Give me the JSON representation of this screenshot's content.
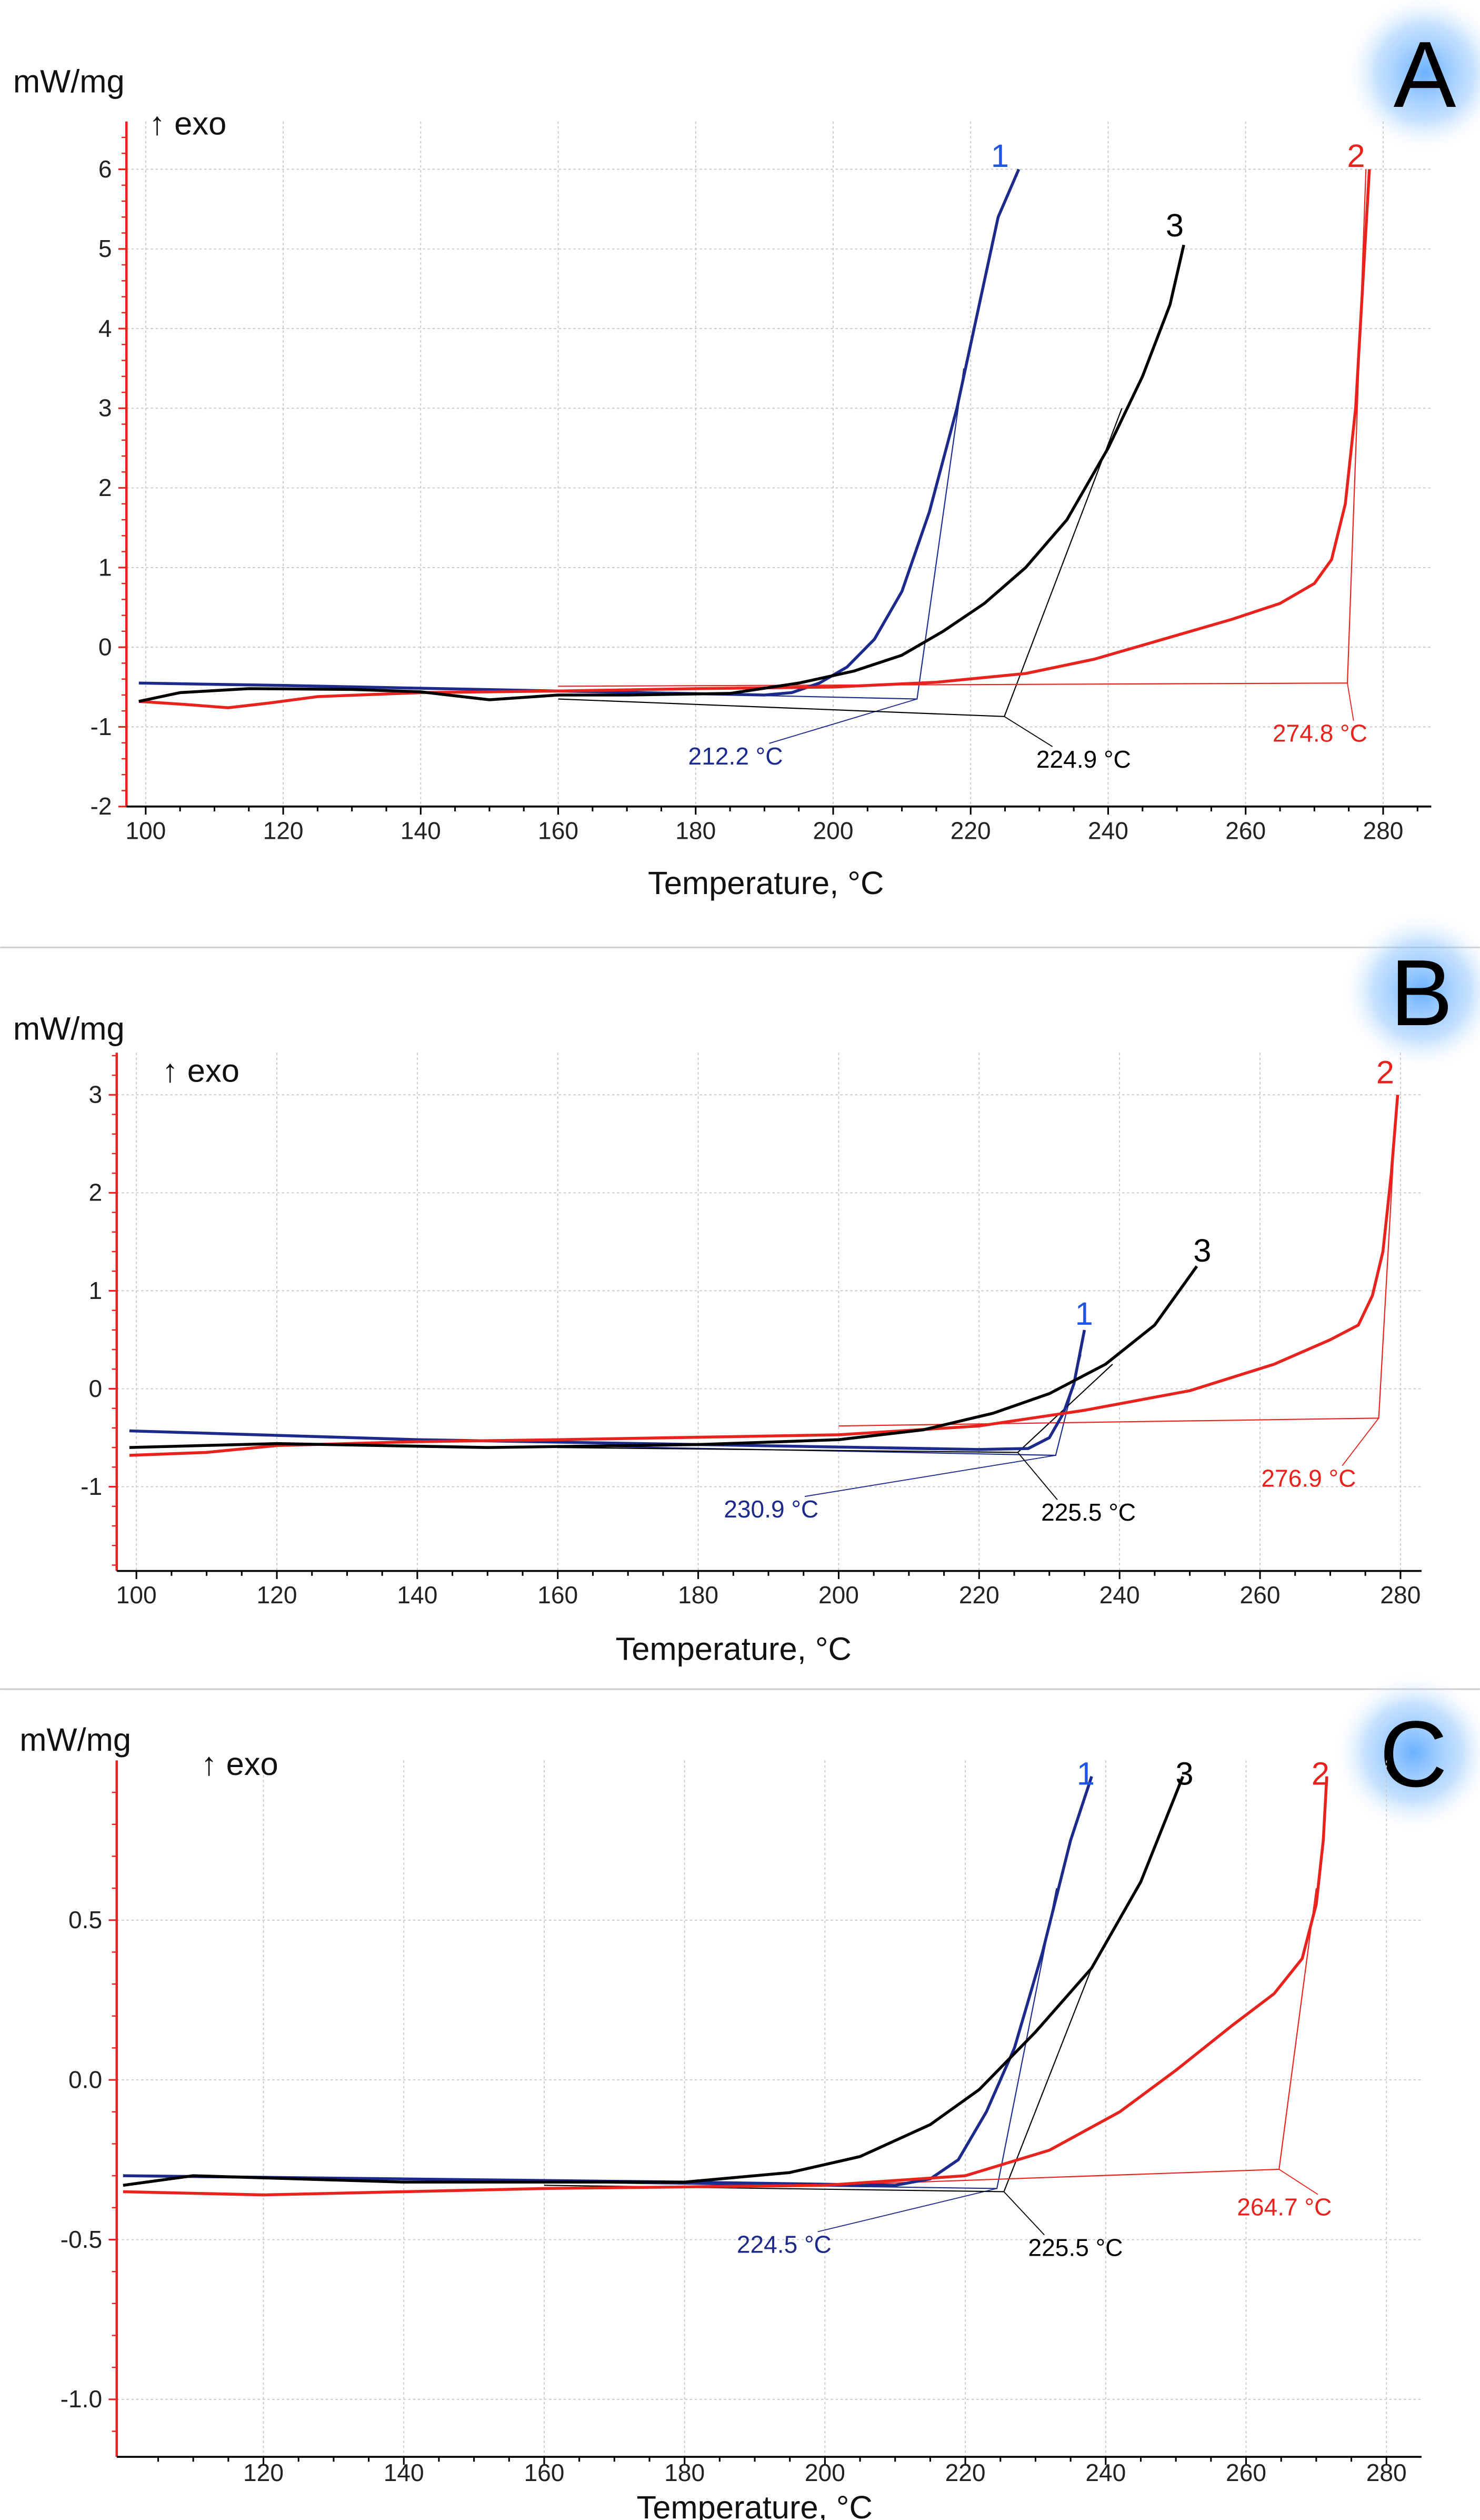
{
  "colors": {
    "series1": "#1c2a8c",
    "series1_label": "#1f55e0",
    "series2": "#e8231e",
    "series3": "#000000",
    "axis": "#e8231e"
  },
  "chart_data": [
    {
      "panel": "A",
      "type": "line",
      "ylabel": "mW/mg",
      "exo_label": "↑ exo",
      "xlabel": "Temperature, °C",
      "xlim": [
        97.2,
        287
      ],
      "ylim": [
        -2,
        6.6
      ],
      "xticks": [
        100,
        120,
        140,
        160,
        180,
        200,
        220,
        240,
        260,
        280
      ],
      "yticks": [
        -2,
        -1,
        0,
        1,
        2,
        3,
        4,
        5,
        6
      ],
      "ytick_labels": [
        "-2",
        "-1",
        "0",
        "1",
        "2",
        "3",
        "4",
        "5",
        "6"
      ],
      "grid": true,
      "series": [
        {
          "name": "1",
          "color": "#1c2a8c",
          "points": [
            [
              99,
              -0.45
            ],
            [
              120,
              -0.48
            ],
            [
              160,
              -0.55
            ],
            [
              190,
              -0.6
            ],
            [
              194,
              -0.57
            ],
            [
              198,
              -0.45
            ],
            [
              202,
              -0.25
            ],
            [
              206,
              0.1
            ],
            [
              210,
              0.7
            ],
            [
              214,
              1.7
            ],
            [
              218,
              3.0
            ],
            [
              221,
              4.2
            ],
            [
              224,
              5.4
            ],
            [
              227,
              6.0
            ]
          ]
        },
        {
          "name": "2",
          "color": "#e8231e",
          "points": [
            [
              99,
              -0.68
            ],
            [
              106,
              -0.72
            ],
            [
              112,
              -0.76
            ],
            [
              118,
              -0.7
            ],
            [
              125,
              -0.62
            ],
            [
              140,
              -0.57
            ],
            [
              160,
              -0.55
            ],
            [
              180,
              -0.52
            ],
            [
              200,
              -0.5
            ],
            [
              215,
              -0.44
            ],
            [
              228,
              -0.33
            ],
            [
              238,
              -0.15
            ],
            [
              248,
              0.1
            ],
            [
              258,
              0.35
            ],
            [
              265,
              0.55
            ],
            [
              270,
              0.8
            ],
            [
              272.5,
              1.1
            ],
            [
              274.5,
              1.8
            ],
            [
              276,
              3.0
            ],
            [
              277,
              4.5
            ],
            [
              278,
              6.0
            ]
          ]
        },
        {
          "name": "3",
          "color": "#000000",
          "points": [
            [
              99,
              -0.68
            ],
            [
              105,
              -0.57
            ],
            [
              115,
              -0.52
            ],
            [
              130,
              -0.53
            ],
            [
              140,
              -0.56
            ],
            [
              150,
              -0.66
            ],
            [
              160,
              -0.6
            ],
            [
              170,
              -0.6
            ],
            [
              185,
              -0.58
            ],
            [
              195,
              -0.45
            ],
            [
              203,
              -0.3
            ],
            [
              210,
              -0.1
            ],
            [
              216,
              0.2
            ],
            [
              222,
              0.55
            ],
            [
              228,
              1.0
            ],
            [
              234,
              1.6
            ],
            [
              240,
              2.5
            ],
            [
              245,
              3.4
            ],
            [
              249,
              4.3
            ],
            [
              251,
              5.05
            ]
          ]
        }
      ],
      "onsets": [
        {
          "series": "1",
          "value": 212.2,
          "label": "212.2 °C",
          "y": -0.65,
          "base_from": [
            160,
            -0.55
          ],
          "tangent_to": [
            219,
            3.5
          ]
        },
        {
          "series": "3",
          "value": 224.9,
          "label": "224.9 °C",
          "y": -0.87,
          "base_from": [
            160,
            -0.65
          ],
          "tangent_to": [
            242,
            3.0
          ]
        },
        {
          "series": "2",
          "value": 274.8,
          "label": "274.8 °C",
          "y": -0.45,
          "base_from": [
            160,
            -0.49
          ],
          "tangent_to": [
            277.5,
            6.0
          ]
        }
      ]
    },
    {
      "panel": "B",
      "type": "line",
      "ylabel": "mW/mg",
      "exo_label": "↑ exo",
      "xlabel": "Temperature, °C",
      "xlim": [
        97.2,
        283
      ],
      "ylim": [
        -1.86,
        3.43
      ],
      "xticks": [
        100,
        120,
        140,
        160,
        180,
        200,
        220,
        240,
        260,
        280
      ],
      "yticks": [
        -1,
        0,
        1,
        2,
        3
      ],
      "ytick_labels": [
        "-1",
        "0",
        "1",
        "2",
        "3"
      ],
      "grid": true,
      "series": [
        {
          "name": "1",
          "color": "#1c2a8c",
          "points": [
            [
              99,
              -0.43
            ],
            [
              140,
              -0.52
            ],
            [
              180,
              -0.57
            ],
            [
              220,
              -0.62
            ],
            [
              227,
              -0.61
            ],
            [
              230,
              -0.5
            ],
            [
              232,
              -0.25
            ],
            [
              233.5,
              0.05
            ],
            [
              235,
              0.6
            ]
          ]
        },
        {
          "name": "2",
          "color": "#e8231e",
          "points": [
            [
              99,
              -0.68
            ],
            [
              110,
              -0.65
            ],
            [
              120,
              -0.58
            ],
            [
              140,
              -0.54
            ],
            [
              160,
              -0.52
            ],
            [
              200,
              -0.47
            ],
            [
              220,
              -0.38
            ],
            [
              235,
              -0.22
            ],
            [
              250,
              -0.02
            ],
            [
              262,
              0.25
            ],
            [
              270,
              0.5
            ],
            [
              274,
              0.65
            ],
            [
              276,
              0.95
            ],
            [
              277.5,
              1.4
            ],
            [
              278.7,
              2.2
            ],
            [
              279.6,
              3.0
            ]
          ]
        },
        {
          "name": "3",
          "color": "#000000",
          "points": [
            [
              99,
              -0.6
            ],
            [
              120,
              -0.56
            ],
            [
              150,
              -0.6
            ],
            [
              180,
              -0.57
            ],
            [
              200,
              -0.52
            ],
            [
              212,
              -0.42
            ],
            [
              222,
              -0.25
            ],
            [
              230,
              -0.05
            ],
            [
              238,
              0.25
            ],
            [
              245,
              0.65
            ],
            [
              251,
              1.25
            ]
          ]
        }
      ],
      "onsets": [
        {
          "series": "1",
          "value": 230.9,
          "label": "230.9 °C",
          "y": -0.68,
          "base_from": [
            160,
            -0.58
          ],
          "tangent_to": [
            234.5,
            0.35
          ]
        },
        {
          "series": "3",
          "value": 225.5,
          "label": "225.5 °C",
          "y": -0.65,
          "base_from": [
            160,
            -0.6
          ],
          "tangent_to": [
            239,
            0.25
          ]
        },
        {
          "series": "2",
          "value": 276.9,
          "label": "276.9 °C",
          "y": -0.3,
          "base_from": [
            200,
            -0.38
          ],
          "tangent_to": [
            279.5,
            3.0
          ]
        }
      ]
    },
    {
      "panel": "C",
      "type": "line",
      "ylabel": "mW/mg",
      "exo_label": "↑ exo",
      "xlabel": "Temperature, °C",
      "xlim": [
        99.1,
        285
      ],
      "ylim": [
        -1.18,
        1.0
      ],
      "xticks": [
        120,
        140,
        160,
        180,
        200,
        220,
        240,
        260,
        280
      ],
      "yticks": [
        -1.0,
        -0.5,
        0.0,
        0.5
      ],
      "ytick_labels": [
        "-1.0",
        "-0.5",
        "0.0",
        "0.5"
      ],
      "grid": true,
      "series": [
        {
          "name": "1",
          "color": "#1c2a8c",
          "points": [
            [
              100,
              -0.3
            ],
            [
              140,
              -0.31
            ],
            [
              180,
              -0.32
            ],
            [
              210,
              -0.33
            ],
            [
              215,
              -0.31
            ],
            [
              219,
              -0.25
            ],
            [
              223,
              -0.1
            ],
            [
              227,
              0.1
            ],
            [
              231,
              0.4
            ],
            [
              235,
              0.75
            ],
            [
              238,
              0.95
            ]
          ]
        },
        {
          "name": "2",
          "color": "#e8231e",
          "points": [
            [
              100,
              -0.35
            ],
            [
              120,
              -0.36
            ],
            [
              160,
              -0.34
            ],
            [
              200,
              -0.33
            ],
            [
              220,
              -0.3
            ],
            [
              232,
              -0.22
            ],
            [
              242,
              -0.1
            ],
            [
              250,
              0.03
            ],
            [
              258,
              0.17
            ],
            [
              264,
              0.27
            ],
            [
              268,
              0.38
            ],
            [
              270,
              0.55
            ],
            [
              271,
              0.75
            ],
            [
              271.5,
              0.95
            ]
          ]
        },
        {
          "name": "3",
          "color": "#000000",
          "points": [
            [
              100,
              -0.33
            ],
            [
              110,
              -0.3
            ],
            [
              140,
              -0.32
            ],
            [
              180,
              -0.32
            ],
            [
              195,
              -0.29
            ],
            [
              205,
              -0.24
            ],
            [
              215,
              -0.14
            ],
            [
              222,
              -0.03
            ],
            [
              230,
              0.15
            ],
            [
              238,
              0.35
            ],
            [
              245,
              0.62
            ],
            [
              251,
              0.95
            ]
          ]
        }
      ],
      "onsets": [
        {
          "series": "1",
          "value": 224.5,
          "label": "224.5 °C",
          "y": -0.34,
          "base_from": [
            160,
            -0.32
          ],
          "tangent_to": [
            233,
            0.6
          ]
        },
        {
          "series": "3",
          "value": 225.5,
          "label": "225.5 °C",
          "y": -0.35,
          "base_from": [
            160,
            -0.33
          ],
          "tangent_to": [
            238,
            0.35
          ]
        },
        {
          "series": "2",
          "value": 264.7,
          "label": "264.7 °C",
          "y": -0.28,
          "base_from": [
            200,
            -0.33
          ],
          "tangent_to": [
            270,
            0.6
          ]
        }
      ]
    }
  ]
}
